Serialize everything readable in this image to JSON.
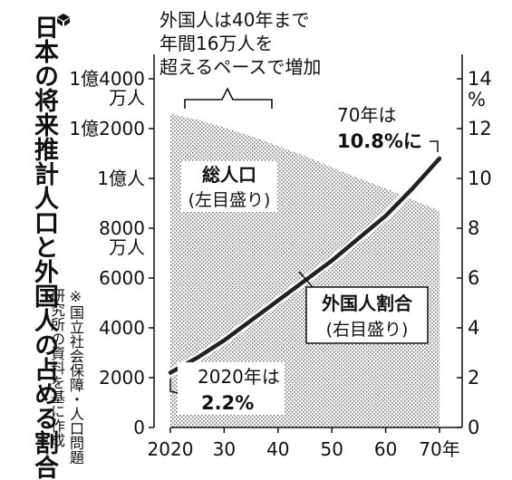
{
  "title": "日本の将来推計人口と外国人の占める割合",
  "note": "※国立社会保障・人口問題研究所の資料を基に作成",
  "chart_data": {
    "type": "area",
    "x_ticks": [
      "2020",
      "30",
      "40",
      "50",
      "60",
      "70年"
    ],
    "x_range": [
      2020,
      2070
    ],
    "left_axis": {
      "ticks": [
        "0",
        "2000",
        "4000",
        "6000",
        "8000",
        "1億人",
        "1億2000",
        "1億4000"
      ],
      "unit_labels": [
        "万人",
        "万人"
      ],
      "range": [
        0,
        14000
      ],
      "unit": "万人"
    },
    "right_axis": {
      "ticks": [
        "0",
        "2",
        "4",
        "6",
        "8",
        "10",
        "12",
        "14"
      ],
      "unit": "%",
      "range": [
        0,
        14
      ]
    },
    "series": [
      {
        "name": "総人口",
        "label": "総人口",
        "sublabel": "(左目盛り)",
        "axis": "left",
        "x": [
          2020,
          2025,
          2030,
          2035,
          2040,
          2045,
          2050,
          2055,
          2060,
          2065,
          2070
        ],
        "values": [
          12600,
          12350,
          12050,
          11700,
          11300,
          10900,
          10450,
          10000,
          9600,
          9150,
          8700
        ],
        "color": "#8a8a8a"
      },
      {
        "name": "外国人割合",
        "label": "外国人割合",
        "sublabel": "(右目盛り)",
        "axis": "right",
        "x": [
          2020,
          2025,
          2030,
          2035,
          2040,
          2045,
          2050,
          2055,
          2060,
          2065,
          2070
        ],
        "values": [
          2.2,
          2.8,
          3.5,
          4.3,
          5.1,
          5.9,
          6.7,
          7.6,
          8.5,
          9.6,
          10.8
        ],
        "color": "#222222"
      }
    ],
    "annotations": {
      "top_line1": "外国人は40年まで",
      "top_line2": "年間16万人を",
      "top_line3": "超えるペースで増加",
      "end_line1": "70年は",
      "end_line2": "10.8%に",
      "start_line1": "2020年は",
      "start_line2": "2.2%"
    }
  }
}
